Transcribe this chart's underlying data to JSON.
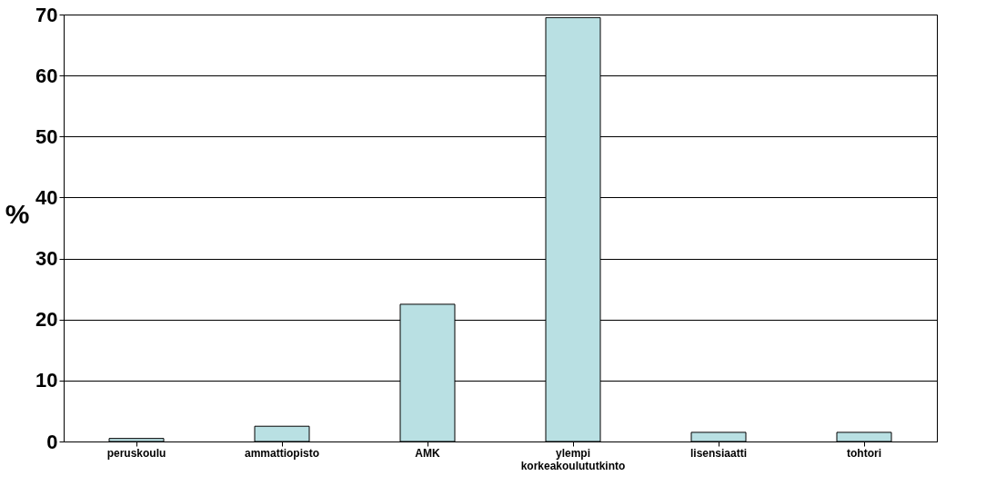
{
  "chart_data": {
    "type": "bar",
    "ylabel": "%",
    "categories": [
      "peruskoulu",
      "ammattiopisto",
      "AMK",
      "ylempi korkeakoulututkinto",
      "lisensiaatti",
      "tohtori"
    ],
    "values": [
      0.5,
      2.5,
      22.5,
      69.5,
      1.5,
      1.5
    ],
    "color": "#b9e0e3",
    "ylim": [
      0,
      70
    ],
    "yticks": [
      0,
      10,
      20,
      30,
      40,
      50,
      60,
      70
    ],
    "grid": "y"
  }
}
